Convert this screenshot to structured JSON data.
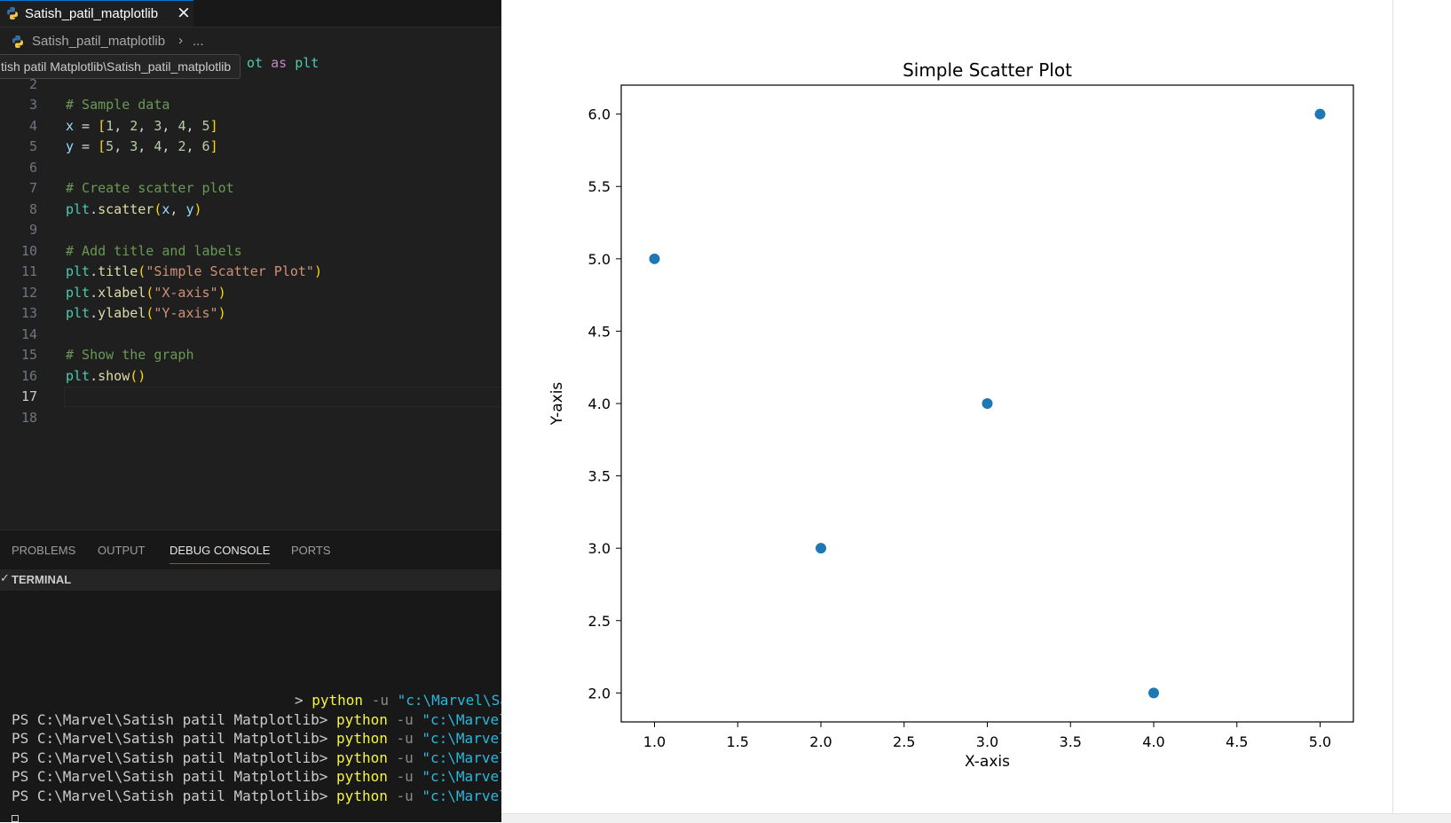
{
  "tab": {
    "title": "Satish_patil_matplotlib",
    "close_icon": "×"
  },
  "breadcrumb": {
    "file": "Satish_patil_matplotlib",
    "separator": "›",
    "more": "..."
  },
  "tooltip": {
    "text": "tish patil Matplotlib\\Satish_patil_matplotlib"
  },
  "code": {
    "active_line": 17,
    "lines": [
      {
        "n": "",
        "tokens": [
          {
            "t": "ot ",
            "c": "plt"
          },
          {
            "t": "as",
            "c": "kw"
          },
          {
            "t": " ",
            "c": "op"
          },
          {
            "t": "plt",
            "c": "plt"
          }
        ]
      },
      {
        "n": "2",
        "tokens": []
      },
      {
        "n": "3",
        "tokens": [
          {
            "t": "# Sample data",
            "c": "cm"
          }
        ]
      },
      {
        "n": "4",
        "tokens": [
          {
            "t": "x",
            "c": "id"
          },
          {
            "t": " = ",
            "c": "op"
          },
          {
            "t": "[",
            "c": "br"
          },
          {
            "t": "1",
            "c": "nm"
          },
          {
            "t": ", ",
            "c": "op"
          },
          {
            "t": "2",
            "c": "nm"
          },
          {
            "t": ", ",
            "c": "op"
          },
          {
            "t": "3",
            "c": "nm"
          },
          {
            "t": ", ",
            "c": "op"
          },
          {
            "t": "4",
            "c": "nm"
          },
          {
            "t": ", ",
            "c": "op"
          },
          {
            "t": "5",
            "c": "nm"
          },
          {
            "t": "]",
            "c": "br"
          }
        ]
      },
      {
        "n": "5",
        "tokens": [
          {
            "t": "y",
            "c": "id"
          },
          {
            "t": " = ",
            "c": "op"
          },
          {
            "t": "[",
            "c": "br"
          },
          {
            "t": "5",
            "c": "nm"
          },
          {
            "t": ", ",
            "c": "op"
          },
          {
            "t": "3",
            "c": "nm"
          },
          {
            "t": ", ",
            "c": "op"
          },
          {
            "t": "4",
            "c": "nm"
          },
          {
            "t": ", ",
            "c": "op"
          },
          {
            "t": "2",
            "c": "nm"
          },
          {
            "t": ", ",
            "c": "op"
          },
          {
            "t": "6",
            "c": "nm"
          },
          {
            "t": "]",
            "c": "br"
          }
        ]
      },
      {
        "n": "6",
        "tokens": []
      },
      {
        "n": "7",
        "tokens": [
          {
            "t": "# Create scatter plot",
            "c": "cm"
          }
        ]
      },
      {
        "n": "8",
        "tokens": [
          {
            "t": "plt",
            "c": "plt"
          },
          {
            "t": ".",
            "c": "op"
          },
          {
            "t": "scatter",
            "c": "fn"
          },
          {
            "t": "(",
            "c": "br"
          },
          {
            "t": "x",
            "c": "id"
          },
          {
            "t": ", ",
            "c": "op"
          },
          {
            "t": "y",
            "c": "id"
          },
          {
            "t": ")",
            "c": "br"
          }
        ]
      },
      {
        "n": "9",
        "tokens": []
      },
      {
        "n": "10",
        "tokens": [
          {
            "t": "# Add title and labels",
            "c": "cm"
          }
        ]
      },
      {
        "n": "11",
        "tokens": [
          {
            "t": "plt",
            "c": "plt"
          },
          {
            "t": ".",
            "c": "op"
          },
          {
            "t": "title",
            "c": "fn"
          },
          {
            "t": "(",
            "c": "br"
          },
          {
            "t": "\"Simple Scatter Plot\"",
            "c": "st"
          },
          {
            "t": ")",
            "c": "br"
          }
        ]
      },
      {
        "n": "12",
        "tokens": [
          {
            "t": "plt",
            "c": "plt"
          },
          {
            "t": ".",
            "c": "op"
          },
          {
            "t": "xlabel",
            "c": "fn"
          },
          {
            "t": "(",
            "c": "br"
          },
          {
            "t": "\"X-axis\"",
            "c": "st"
          },
          {
            "t": ")",
            "c": "br"
          }
        ]
      },
      {
        "n": "13",
        "tokens": [
          {
            "t": "plt",
            "c": "plt"
          },
          {
            "t": ".",
            "c": "op"
          },
          {
            "t": "ylabel",
            "c": "fn"
          },
          {
            "t": "(",
            "c": "br"
          },
          {
            "t": "\"Y-axis\"",
            "c": "st"
          },
          {
            "t": ")",
            "c": "br"
          }
        ]
      },
      {
        "n": "14",
        "tokens": []
      },
      {
        "n": "15",
        "tokens": [
          {
            "t": "# Show the graph",
            "c": "cm"
          }
        ]
      },
      {
        "n": "16",
        "tokens": [
          {
            "t": "plt",
            "c": "plt"
          },
          {
            "t": ".",
            "c": "op"
          },
          {
            "t": "show",
            "c": "fn"
          },
          {
            "t": "()",
            "c": "br"
          }
        ]
      },
      {
        "n": "17",
        "tokens": []
      },
      {
        "n": "18",
        "tokens": []
      }
    ]
  },
  "panel": {
    "tabs": [
      {
        "label": "PROBLEMS",
        "active": false
      },
      {
        "label": "OUTPUT",
        "active": false
      },
      {
        "label": "DEBUG CONSOLE",
        "active": true
      },
      {
        "label": "PORTS",
        "active": false
      }
    ],
    "terminal_header": "TERMINAL",
    "terminal_lines": [
      {
        "prompt": "",
        "cmd": "python",
        "flag": "-u",
        "arg": "\"c:\\Marvel\\Sa"
      },
      {
        "prompt": "PS C:\\Marvel\\Satish patil Matplotlib> ",
        "cmd": "python",
        "flag": "-u",
        "arg": "\"c:\\Marvel\\Sa"
      },
      {
        "prompt": "PS C:\\Marvel\\Satish patil Matplotlib> ",
        "cmd": "python",
        "flag": "-u",
        "arg": "\"c:\\Marvel\\Sa"
      },
      {
        "prompt": "PS C:\\Marvel\\Satish patil Matplotlib> ",
        "cmd": "python",
        "flag": "-u",
        "arg": "\"c:\\Marvel\\Sa"
      },
      {
        "prompt": "PS C:\\Marvel\\Satish patil Matplotlib> ",
        "cmd": "python",
        "flag": "-u",
        "arg": "\"c:\\Marvel\\Sa"
      },
      {
        "prompt": "PS C:\\Marvel\\Satish patil Matplotlib> ",
        "cmd": "python",
        "flag": "-u",
        "arg": "\"c:\\Marvel\\Sa"
      }
    ],
    "first_line_prefix": ">"
  },
  "chart_data": {
    "type": "scatter",
    "title": "Simple Scatter Plot",
    "xlabel": "X-axis",
    "ylabel": "Y-axis",
    "x": [
      1,
      2,
      3,
      4,
      5
    ],
    "y": [
      5,
      3,
      4,
      2,
      6
    ],
    "xlim": [
      0.8,
      5.2
    ],
    "ylim": [
      1.8,
      6.2
    ],
    "xticks": [
      "1.0",
      "1.5",
      "2.0",
      "2.5",
      "3.0",
      "3.5",
      "4.0",
      "4.5",
      "5.0"
    ],
    "yticks": [
      "2.0",
      "2.5",
      "3.0",
      "3.5",
      "4.0",
      "4.5",
      "5.0",
      "5.5",
      "6.0"
    ],
    "grid": false,
    "marker_color": "#1f77b4"
  },
  "colors": {
    "editor_bg": "#1f1f1f",
    "panel_bg": "#181818",
    "accent": "#0078d4"
  }
}
